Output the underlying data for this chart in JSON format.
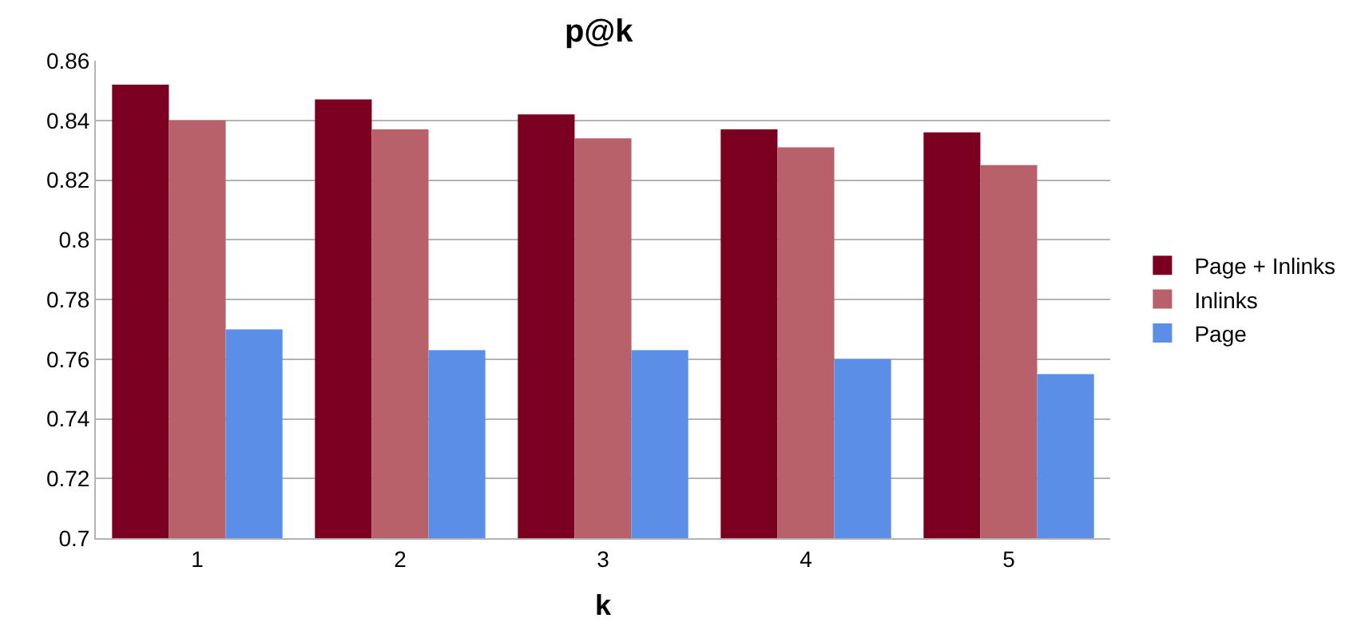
{
  "chart_data": {
    "type": "bar",
    "title": "p@k",
    "xlabel": "k",
    "categories": [
      "1",
      "2",
      "3",
      "4",
      "5"
    ],
    "series": [
      {
        "name": "Page + Inlinks",
        "color": "#7b0020",
        "values": [
          0.852,
          0.847,
          0.842,
          0.837,
          0.836
        ]
      },
      {
        "name": "Inlinks",
        "color": "#b8616b",
        "values": [
          0.84,
          0.837,
          0.834,
          0.831,
          0.825
        ]
      },
      {
        "name": "Page",
        "color": "#5b8ee6",
        "values": [
          0.77,
          0.763,
          0.763,
          0.76,
          0.755
        ]
      }
    ],
    "ylim": [
      0.7,
      0.86
    ],
    "yticks": [
      0.7,
      0.72,
      0.74,
      0.76,
      0.78,
      0.8,
      0.82,
      0.84,
      0.86
    ],
    "grid": "y",
    "legend": "right"
  }
}
